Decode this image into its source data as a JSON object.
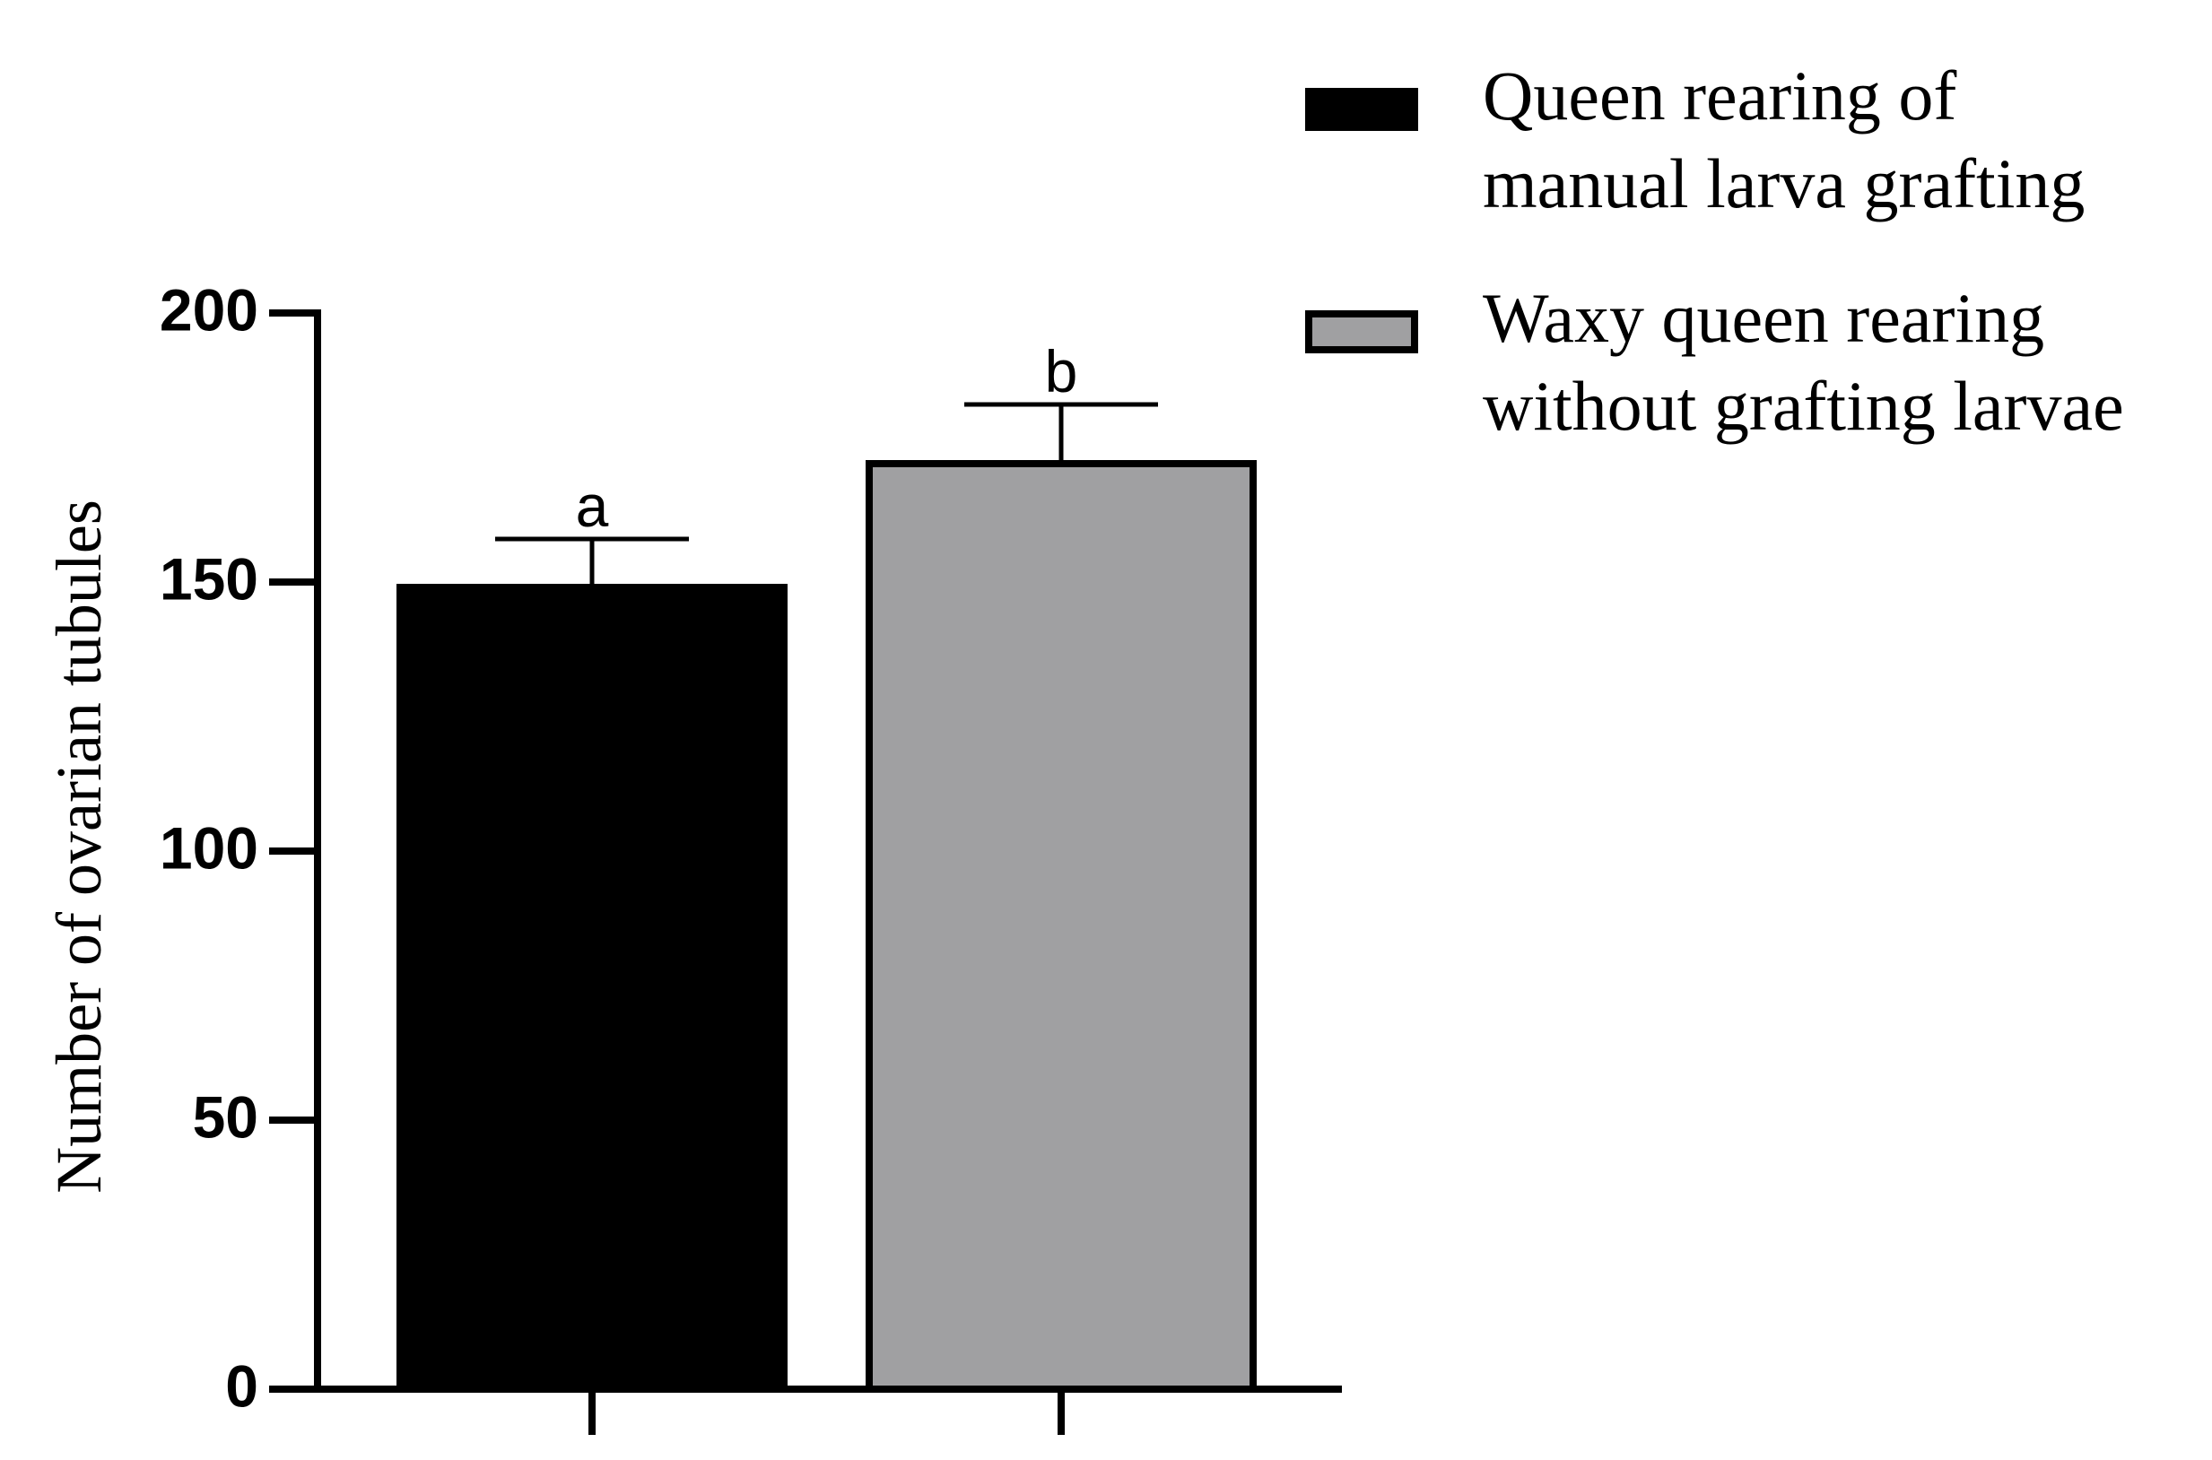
{
  "chart_data": {
    "type": "bar",
    "ylabel": "Number of ovarian tubules",
    "categories": [
      null,
      null
    ],
    "series": [
      {
        "name": "Queen rearing of\nmanual larva grafting",
        "color": "#000000",
        "values": [
          149,
          null
        ],
        "errors": [
          9,
          null
        ],
        "significance": [
          "a",
          null
        ]
      },
      {
        "name": "Waxy queen rearing\nwithout grafting larvae",
        "color": "#a0a0a2",
        "values": [
          null,
          172
        ],
        "errors": [
          null,
          11
        ],
        "significance": [
          null,
          "b"
        ]
      }
    ],
    "ylim": [
      0,
      200
    ],
    "yticks": [
      0,
      50,
      100,
      150,
      200
    ],
    "grid": false,
    "legend": "top-right"
  }
}
